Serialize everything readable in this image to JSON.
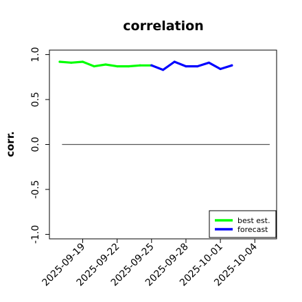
{
  "chart_data": {
    "type": "line",
    "title": "correlation",
    "xlabel": "",
    "ylabel": "corr.",
    "ylim": [
      -1.05,
      1.05
    ],
    "yticks": [
      -1.0,
      -0.5,
      0.0,
      0.5,
      1.0
    ],
    "ytick_labels": [
      "-1.0",
      "-0.5",
      "0.0",
      "0.5",
      "1.0"
    ],
    "xticks": [
      "2025-09-19",
      "2025-09-22",
      "2025-09-25",
      "2025-09-28",
      "2025-10-01",
      "2025-10-04"
    ],
    "xticks_days": [
      2,
      5,
      8,
      11,
      14,
      17
    ],
    "highlight_tick": "2025-09-25",
    "xlim_days": [
      -0.9,
      18.9
    ],
    "reference_line": {
      "y": 0.0
    },
    "grid": false,
    "legend_position": "lower-right",
    "series": [
      {
        "name": "best est.",
        "color": "#00ff00",
        "x": [
          "2025-09-17",
          "2025-09-18",
          "2025-09-19",
          "2025-09-20",
          "2025-09-21",
          "2025-09-22",
          "2025-09-23",
          "2025-09-24",
          "2025-09-25"
        ],
        "values": [
          0.92,
          0.91,
          0.92,
          0.87,
          0.89,
          0.87,
          0.87,
          0.88,
          0.88
        ]
      },
      {
        "name": "forecast",
        "color": "#0000ff",
        "x": [
          "2025-09-25",
          "2025-09-26",
          "2025-09-27",
          "2025-09-28",
          "2025-09-29",
          "2025-09-30",
          "2025-10-01",
          "2025-10-02"
        ],
        "values": [
          0.88,
          0.83,
          0.92,
          0.87,
          0.87,
          0.91,
          0.84,
          0.88
        ]
      }
    ]
  }
}
